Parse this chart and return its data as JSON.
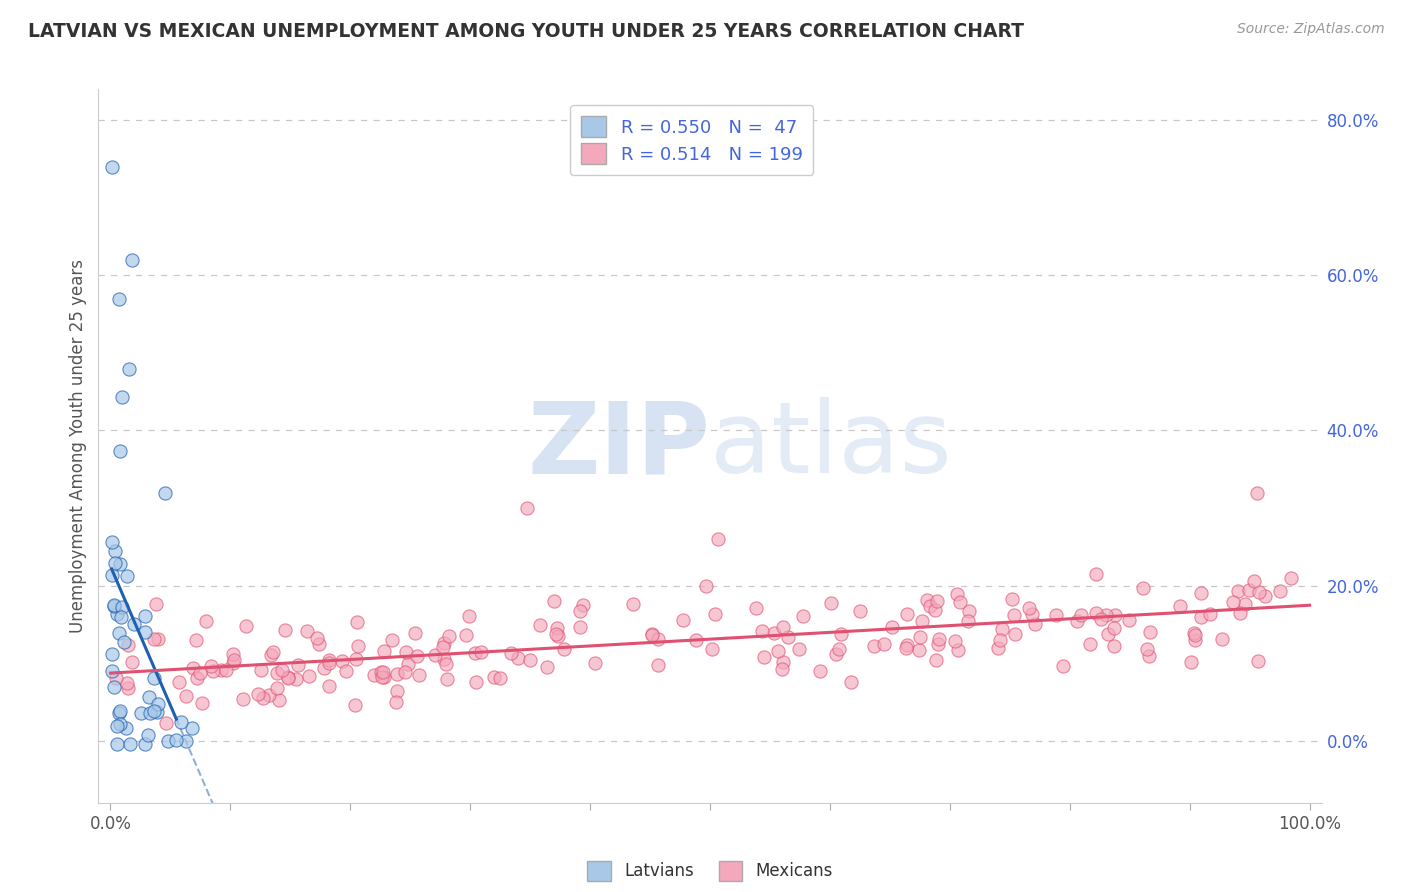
{
  "title": "LATVIAN VS MEXICAN UNEMPLOYMENT AMONG YOUTH UNDER 25 YEARS CORRELATION CHART",
  "source": "Source: ZipAtlas.com",
  "ylabel": "Unemployment Among Youth under 25 years",
  "R_latvian": 0.55,
  "N_latvian": 47,
  "R_mexican": 0.514,
  "N_mexican": 199,
  "color_latvian": "#a8c8e8",
  "color_mexican": "#f4a8bc",
  "color_latvian_line": "#2060b0",
  "color_mexican_line": "#e05070",
  "legend_latvians": "Latvians",
  "legend_mexicans": "Mexicans",
  "xlim": [
    -0.01,
    1.01
  ],
  "ylim": [
    -0.08,
    0.84
  ],
  "y_ticks_right": [
    0.0,
    0.2,
    0.4,
    0.6,
    0.8
  ],
  "background_color": "#ffffff",
  "grid_color": "#c8c8c8",
  "title_color": "#333333",
  "source_color": "#999999",
  "legend_text_color": "#4466dd",
  "watermark_color": "#d0dff0"
}
